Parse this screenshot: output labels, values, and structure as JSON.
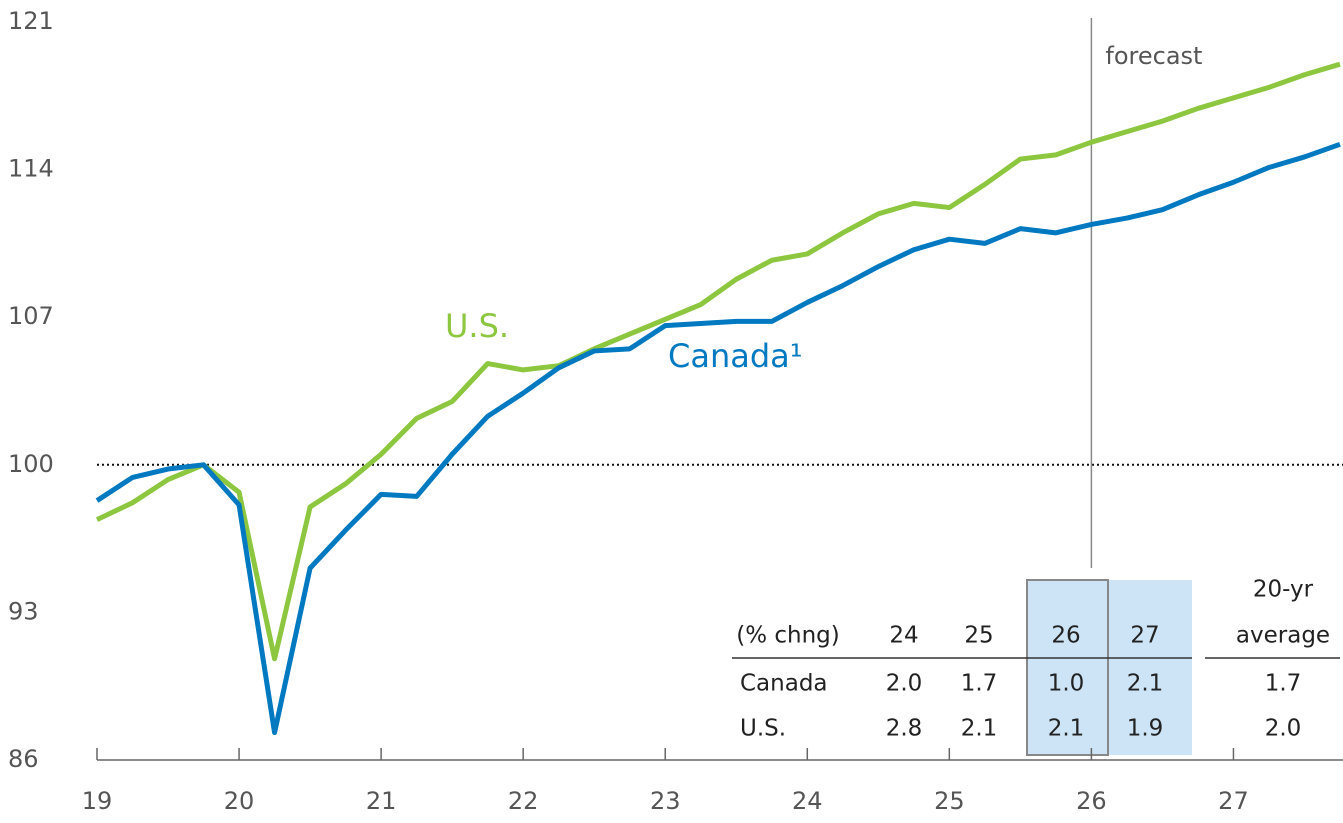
{
  "chart_data": {
    "type": "line",
    "x": [
      19,
      19.25,
      19.5,
      19.75,
      20,
      20.25,
      20.5,
      20.75,
      21,
      21.25,
      21.5,
      21.75,
      22,
      22.25,
      22.5,
      22.75,
      23,
      23.25,
      23.5,
      23.75,
      24,
      24.25,
      24.5,
      24.75,
      25,
      25.25,
      25.5,
      25.75,
      26,
      26.25,
      26.5,
      26.75,
      27,
      27.25,
      27.5,
      27.75
    ],
    "series": [
      {
        "name": "U.S.",
        "color": "#8dc63f",
        "values": [
          97.4,
          98.2,
          99.3,
          100,
          98.7,
          90.8,
          98.0,
          99.1,
          100.5,
          102.2,
          103.0,
          104.8,
          104.5,
          104.7,
          105.5,
          106.2,
          106.9,
          107.6,
          108.8,
          109.7,
          110.0,
          111.0,
          111.9,
          112.4,
          112.2,
          113.3,
          114.5,
          114.7,
          115.3,
          115.8,
          116.3,
          116.9,
          117.4,
          117.9,
          118.5,
          119.0
        ]
      },
      {
        "name": "Canada¹",
        "color": "#0079c1",
        "values": [
          98.3,
          99.4,
          99.8,
          100,
          98.1,
          87.3,
          95.1,
          96.9,
          98.6,
          98.5,
          100.5,
          102.3,
          103.4,
          104.6,
          105.4,
          105.5,
          106.6,
          106.7,
          106.8,
          106.8,
          107.7,
          108.5,
          109.4,
          110.2,
          110.7,
          110.5,
          111.2,
          111.0,
          111.4,
          111.7,
          112.1,
          112.8,
          113.4,
          114.1,
          114.6,
          115.2
        ]
      }
    ],
    "xlim": [
      19,
      27.75
    ],
    "xticks": [
      19,
      20,
      21,
      22,
      23,
      24,
      25,
      26,
      27
    ],
    "ylim": [
      86,
      121
    ],
    "yticks": [
      86,
      93,
      100,
      107,
      114,
      121
    ],
    "reference_y": 100,
    "forecast_x": 26,
    "forecast_label": "forecast",
    "table": {
      "header": [
        "(% chng)",
        "24",
        "25",
        "26",
        "27",
        [
          "20-yr",
          "average"
        ]
      ],
      "rows": [
        [
          "Canada",
          "2.0",
          "1.7",
          "1.0",
          "2.1",
          "1.7"
        ],
        [
          "U.S.",
          "2.8",
          "2.1",
          "2.1",
          "1.9",
          "2.0"
        ]
      ]
    }
  }
}
